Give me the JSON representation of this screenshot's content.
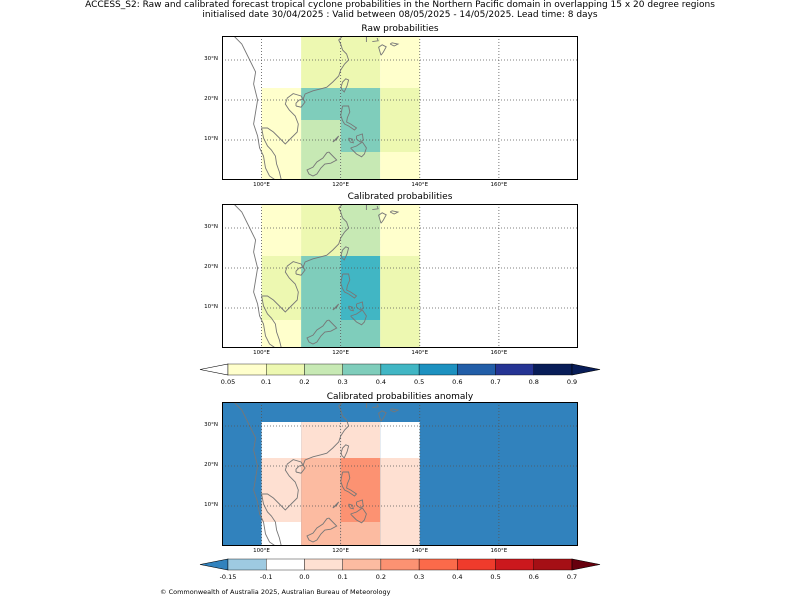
{
  "title_line1": "ACCESS_S2: Raw and calibrated forecast tropical cyclone probabilities in the Northern Pacific domain in overlapping 15 x 20 degree regions",
  "title_line2": "initialised date 30/04/2025 :  Valid between 08/05/2025 - 14/05/2025. Lead time: 8 days",
  "footer": "© Commonwealth of Australia 2025, Australian Bureau of Meteorology",
  "map": {
    "lon_range": [
      90,
      180
    ],
    "lat_range": [
      0,
      36
    ],
    "lon_ticks": [
      100,
      120,
      140,
      160
    ],
    "lon_tick_labels": [
      "100°E",
      "120°E",
      "140°E",
      "160°E"
    ],
    "lat_ticks": [
      10,
      20,
      30
    ],
    "lat_tick_labels": [
      "10°N",
      "20°N",
      "30°N"
    ],
    "grid": true,
    "coastline_color": "#777777"
  },
  "panels": [
    {
      "title": "Raw probabilities",
      "cells": [
        {
          "lon": [
            110,
            120
          ],
          "lat": [
            31,
            36
          ],
          "value": 0.1
        },
        {
          "lon": [
            120,
            130
          ],
          "lat": [
            31,
            36
          ],
          "value": 0.1
        },
        {
          "lon": [
            130,
            140
          ],
          "lat": [
            31,
            36
          ],
          "value": 0.05
        },
        {
          "lon": [
            110,
            120
          ],
          "lat": [
            23,
            31
          ],
          "value": 0.1
        },
        {
          "lon": [
            120,
            130
          ],
          "lat": [
            23,
            31
          ],
          "value": 0.1
        },
        {
          "lon": [
            130,
            140
          ],
          "lat": [
            23,
            31
          ],
          "value": 0.05
        },
        {
          "lon": [
            100,
            110
          ],
          "lat": [
            15,
            23
          ],
          "value": 0.05
        },
        {
          "lon": [
            110,
            120
          ],
          "lat": [
            15,
            23
          ],
          "value": 0.3
        },
        {
          "lon": [
            120,
            130
          ],
          "lat": [
            15,
            23
          ],
          "value": 0.3
        },
        {
          "lon": [
            130,
            140
          ],
          "lat": [
            15,
            23
          ],
          "value": 0.1
        },
        {
          "lon": [
            100,
            110
          ],
          "lat": [
            7,
            15
          ],
          "value": 0.05
        },
        {
          "lon": [
            110,
            120
          ],
          "lat": [
            7,
            15
          ],
          "value": 0.2
        },
        {
          "lon": [
            120,
            130
          ],
          "lat": [
            7,
            15
          ],
          "value": 0.3
        },
        {
          "lon": [
            130,
            140
          ],
          "lat": [
            7,
            15
          ],
          "value": 0.1
        },
        {
          "lon": [
            100,
            110
          ],
          "lat": [
            0,
            7
          ],
          "value": 0.05
        },
        {
          "lon": [
            110,
            120
          ],
          "lat": [
            0,
            7
          ],
          "value": 0.2
        },
        {
          "lon": [
            120,
            130
          ],
          "lat": [
            0,
            7
          ],
          "value": 0.2
        },
        {
          "lon": [
            130,
            140
          ],
          "lat": [
            0,
            7
          ],
          "value": 0.05
        }
      ]
    },
    {
      "title": "Calibrated probabilities",
      "cells": [
        {
          "lon": [
            100,
            110
          ],
          "lat": [
            31,
            36
          ],
          "value": 0.05
        },
        {
          "lon": [
            110,
            120
          ],
          "lat": [
            31,
            36
          ],
          "value": 0.1
        },
        {
          "lon": [
            120,
            130
          ],
          "lat": [
            31,
            36
          ],
          "value": 0.2
        },
        {
          "lon": [
            130,
            140
          ],
          "lat": [
            31,
            36
          ],
          "value": 0.05
        },
        {
          "lon": [
            100,
            110
          ],
          "lat": [
            23,
            31
          ],
          "value": 0.05
        },
        {
          "lon": [
            110,
            120
          ],
          "lat": [
            23,
            31
          ],
          "value": 0.1
        },
        {
          "lon": [
            120,
            130
          ],
          "lat": [
            23,
            31
          ],
          "value": 0.2
        },
        {
          "lon": [
            130,
            140
          ],
          "lat": [
            23,
            31
          ],
          "value": 0.05
        },
        {
          "lon": [
            100,
            110
          ],
          "lat": [
            15,
            23
          ],
          "value": 0.1
        },
        {
          "lon": [
            110,
            120
          ],
          "lat": [
            15,
            23
          ],
          "value": 0.3
        },
        {
          "lon": [
            120,
            130
          ],
          "lat": [
            15,
            23
          ],
          "value": 0.4
        },
        {
          "lon": [
            130,
            140
          ],
          "lat": [
            15,
            23
          ],
          "value": 0.1
        },
        {
          "lon": [
            100,
            110
          ],
          "lat": [
            7,
            15
          ],
          "value": 0.1
        },
        {
          "lon": [
            110,
            120
          ],
          "lat": [
            7,
            15
          ],
          "value": 0.3
        },
        {
          "lon": [
            120,
            130
          ],
          "lat": [
            7,
            15
          ],
          "value": 0.4
        },
        {
          "lon": [
            130,
            140
          ],
          "lat": [
            7,
            15
          ],
          "value": 0.1
        },
        {
          "lon": [
            100,
            110
          ],
          "lat": [
            0,
            7
          ],
          "value": 0.05
        },
        {
          "lon": [
            110,
            120
          ],
          "lat": [
            0,
            7
          ],
          "value": 0.3
        },
        {
          "lon": [
            120,
            130
          ],
          "lat": [
            0,
            7
          ],
          "value": 0.3
        },
        {
          "lon": [
            130,
            140
          ],
          "lat": [
            0,
            7
          ],
          "value": 0.1
        }
      ]
    },
    {
      "title": "Calibrated probabilities anomaly",
      "background_value": -0.2,
      "cells": [
        {
          "lon": [
            100,
            110
          ],
          "lat": [
            22,
            31
          ],
          "value": -0.1
        },
        {
          "lon": [
            110,
            120
          ],
          "lat": [
            22,
            31
          ],
          "value": 0.0
        },
        {
          "lon": [
            120,
            130
          ],
          "lat": [
            22,
            31
          ],
          "value": 0.05
        },
        {
          "lon": [
            130,
            140
          ],
          "lat": [
            22,
            31
          ],
          "value": -0.1
        },
        {
          "lon": [
            100,
            110
          ],
          "lat": [
            6,
            22
          ],
          "value": 0.0
        },
        {
          "lon": [
            110,
            120
          ],
          "lat": [
            6,
            22
          ],
          "value": 0.15
        },
        {
          "lon": [
            120,
            130
          ],
          "lat": [
            6,
            22
          ],
          "value": 0.25
        },
        {
          "lon": [
            130,
            140
          ],
          "lat": [
            6,
            22
          ],
          "value": 0.0
        },
        {
          "lon": [
            100,
            110
          ],
          "lat": [
            0,
            6
          ],
          "value": -0.1
        },
        {
          "lon": [
            110,
            120
          ],
          "lat": [
            0,
            6
          ],
          "value": 0.15
        },
        {
          "lon": [
            120,
            130
          ],
          "lat": [
            0,
            6
          ],
          "value": 0.15
        },
        {
          "lon": [
            130,
            140
          ],
          "lat": [
            0,
            6
          ],
          "value": 0.0
        }
      ]
    }
  ],
  "colorbars": [
    {
      "ticks": [
        "0.05",
        "0.1",
        "0.2",
        "0.3",
        "0.4",
        "0.5",
        "0.6",
        "0.7",
        "0.8",
        "0.9"
      ],
      "boundaries": [
        0.05,
        0.1,
        0.2,
        0.3,
        0.4,
        0.5,
        0.6,
        0.7,
        0.8,
        0.9
      ],
      "under_color": "#ffffff",
      "over_color": "#081d58",
      "colors": [
        "#ffffcc",
        "#edf8b1",
        "#c7e9b4",
        "#7fcdbb",
        "#41b6c4",
        "#1d91c0",
        "#225ea8",
        "#253494",
        "#081d58"
      ]
    },
    {
      "ticks": [
        "-0.15",
        "-0.1",
        "0.0",
        "0.1",
        "0.2",
        "0.3",
        "0.4",
        "0.5",
        "0.6",
        "0.7"
      ],
      "boundaries": [
        -0.15,
        -0.1,
        0.0,
        0.1,
        0.2,
        0.3,
        0.4,
        0.5,
        0.6,
        0.7
      ],
      "under_color": "#3182bd",
      "over_color": "#67000d",
      "colors": [
        "#9ecae1",
        "#ffffff",
        "#fee0d2",
        "#fcbba1",
        "#fc9272",
        "#fb6a4a",
        "#ef3b2c",
        "#cb181d",
        "#a50f15"
      ]
    }
  ]
}
